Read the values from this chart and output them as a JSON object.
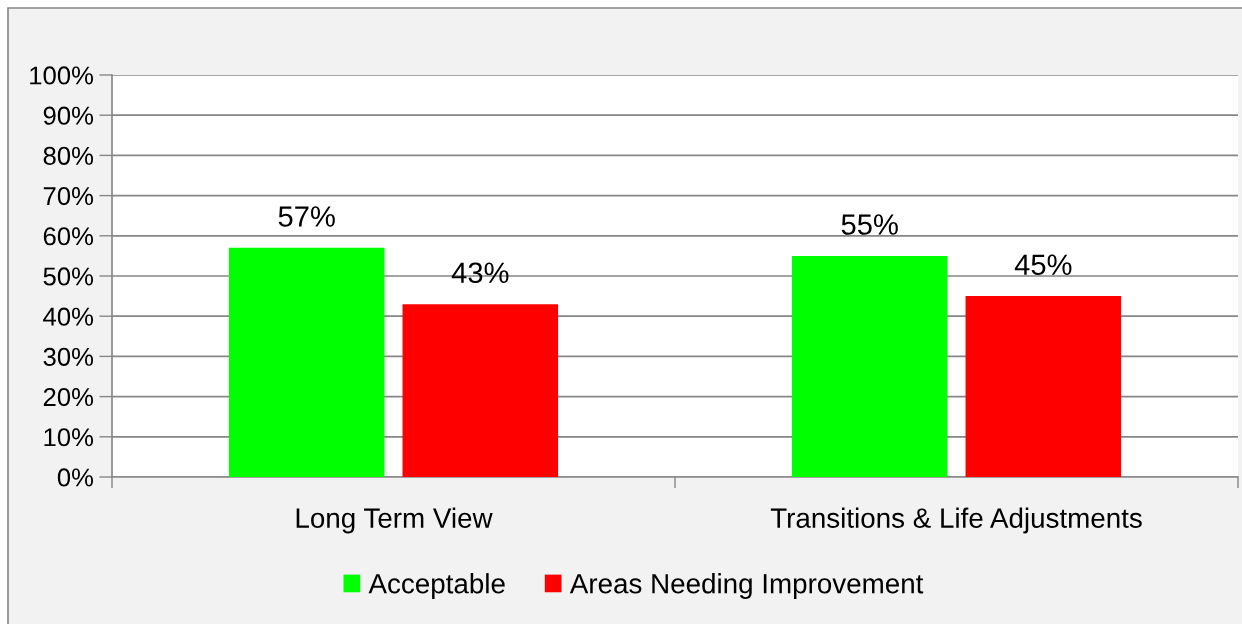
{
  "chart_data": {
    "type": "bar",
    "categories": [
      "Long Term View",
      "Transitions & Life Adjustments"
    ],
    "series": [
      {
        "name": "Acceptable",
        "color": "#00ff00",
        "values": [
          57,
          55
        ],
        "value_labels": [
          "57%",
          "55%"
        ]
      },
      {
        "name": "Areas Needing Improvement",
        "color": "#ff0000",
        "values": [
          43,
          45
        ],
        "value_labels": [
          "43%",
          "45%"
        ]
      }
    ],
    "ylim": [
      0,
      100
    ],
    "yticks": [
      {
        "value": 0,
        "label": "0%"
      },
      {
        "value": 10,
        "label": "10%"
      },
      {
        "value": 20,
        "label": "20%"
      },
      {
        "value": 30,
        "label": "30%"
      },
      {
        "value": 40,
        "label": "40%"
      },
      {
        "value": 50,
        "label": "50%"
      },
      {
        "value": 60,
        "label": "60%"
      },
      {
        "value": 70,
        "label": "70%"
      },
      {
        "value": 80,
        "label": "80%"
      },
      {
        "value": 90,
        "label": "90%"
      },
      {
        "value": 100,
        "label": "100%"
      }
    ],
    "grid": "y",
    "legend": "bottom"
  }
}
